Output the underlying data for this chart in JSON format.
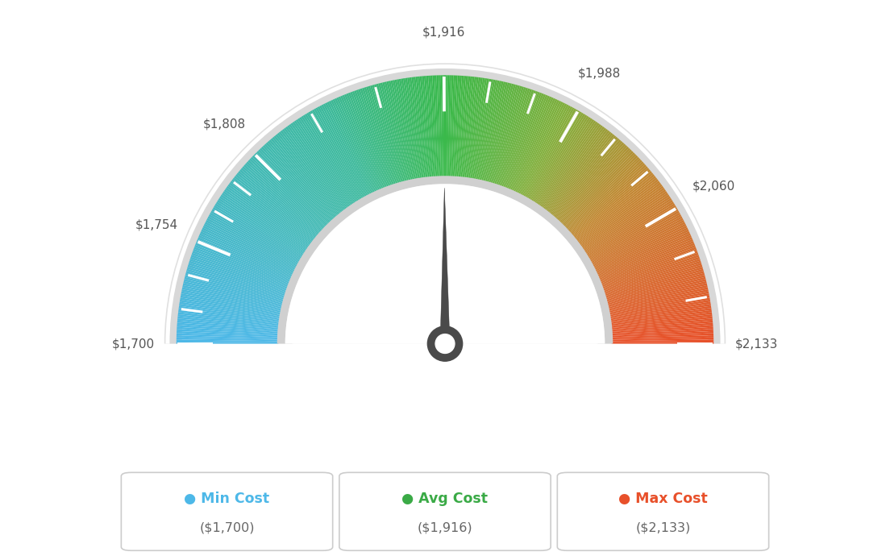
{
  "min_val": 1700,
  "avg_val": 1916,
  "max_val": 2133,
  "tick_labels": [
    "$1,700",
    "$1,754",
    "$1,808",
    "$1,916",
    "$1,988",
    "$2,060",
    "$2,133"
  ],
  "tick_values": [
    1700,
    1754,
    1808,
    1916,
    1988,
    2060,
    2133
  ],
  "legend_labels": [
    "Min Cost",
    "Avg Cost",
    "Max Cost"
  ],
  "legend_values": [
    "($1,700)",
    "($1,916)",
    "($2,133)"
  ],
  "legend_colors": [
    "#4db8e8",
    "#3aaa46",
    "#e8502a"
  ],
  "bg_color": "#ffffff",
  "needle_value": 1916,
  "color_stops": [
    [
      0.0,
      [
        77,
        184,
        232
      ]
    ],
    [
      0.35,
      [
        60,
        185,
        155
      ]
    ],
    [
      0.5,
      [
        58,
        185,
        74
      ]
    ],
    [
      0.65,
      [
        130,
        175,
        60
      ]
    ],
    [
      0.78,
      [
        195,
        135,
        50
      ]
    ],
    [
      1.0,
      [
        232,
        80,
        42
      ]
    ]
  ]
}
